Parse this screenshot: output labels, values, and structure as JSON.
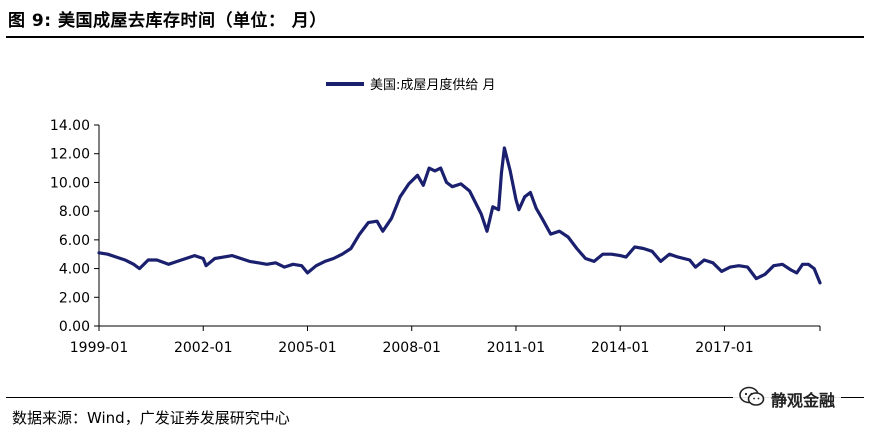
{
  "figure": {
    "title": "图 9:  美国成屋去库存时间（单位：  月）",
    "source": "数据来源：Wind，广发证券发展研究中心",
    "watermark": "静观金融"
  },
  "colors": {
    "series": "#1a1f6e",
    "axis": "#000000"
  },
  "chart_data": {
    "type": "line",
    "title": "",
    "xlabel": "",
    "ylabel": "",
    "ylim": [
      0,
      14
    ],
    "yticks": [
      "0.00",
      "2.00",
      "4.00",
      "6.00",
      "8.00",
      "10.00",
      "12.00",
      "14.00"
    ],
    "xticks": [
      "1999-01",
      "2002-01",
      "2005-01",
      "2008-01",
      "2011-01",
      "2014-01",
      "2017-01"
    ],
    "xrange": [
      "1999-01",
      "2019-10"
    ],
    "legend_position": "top-center",
    "grid": false,
    "series": [
      {
        "name": "美国:成屋月度供给 月",
        "points": [
          [
            "1999-01",
            5.1
          ],
          [
            "1999-04",
            5.0
          ],
          [
            "1999-07",
            4.8
          ],
          [
            "1999-10",
            4.6
          ],
          [
            "2000-01",
            4.3
          ],
          [
            "2000-03",
            4.0
          ],
          [
            "2000-06",
            4.6
          ],
          [
            "2000-09",
            4.6
          ],
          [
            "2001-01",
            4.3
          ],
          [
            "2001-04",
            4.5
          ],
          [
            "2001-07",
            4.7
          ],
          [
            "2001-10",
            4.9
          ],
          [
            "2002-01",
            4.7
          ],
          [
            "2002-02",
            4.2
          ],
          [
            "2002-05",
            4.7
          ],
          [
            "2002-08",
            4.8
          ],
          [
            "2002-11",
            4.9
          ],
          [
            "2003-02",
            4.7
          ],
          [
            "2003-05",
            4.5
          ],
          [
            "2003-08",
            4.4
          ],
          [
            "2003-11",
            4.3
          ],
          [
            "2004-02",
            4.4
          ],
          [
            "2004-05",
            4.1
          ],
          [
            "2004-08",
            4.3
          ],
          [
            "2004-11",
            4.2
          ],
          [
            "2005-01",
            3.7
          ],
          [
            "2005-04",
            4.2
          ],
          [
            "2005-07",
            4.5
          ],
          [
            "2005-10",
            4.7
          ],
          [
            "2006-01",
            5.0
          ],
          [
            "2006-04",
            5.4
          ],
          [
            "2006-07",
            6.4
          ],
          [
            "2006-10",
            7.2
          ],
          [
            "2007-01",
            7.3
          ],
          [
            "2007-03",
            6.6
          ],
          [
            "2007-06",
            7.5
          ],
          [
            "2007-09",
            9.0
          ],
          [
            "2007-12",
            9.9
          ],
          [
            "2008-03",
            10.5
          ],
          [
            "2008-05",
            9.8
          ],
          [
            "2008-07",
            11.0
          ],
          [
            "2008-09",
            10.8
          ],
          [
            "2008-11",
            11.0
          ],
          [
            "2009-01",
            10.0
          ],
          [
            "2009-03",
            9.7
          ],
          [
            "2009-06",
            9.9
          ],
          [
            "2009-09",
            9.4
          ],
          [
            "2009-11",
            8.6
          ],
          [
            "2010-01",
            7.8
          ],
          [
            "2010-03",
            6.6
          ],
          [
            "2010-05",
            8.3
          ],
          [
            "2010-07",
            8.1
          ],
          [
            "2010-08",
            10.7
          ],
          [
            "2010-09",
            12.4
          ],
          [
            "2010-11",
            10.8
          ],
          [
            "2011-01",
            8.8
          ],
          [
            "2011-02",
            8.1
          ],
          [
            "2011-04",
            9.0
          ],
          [
            "2011-06",
            9.3
          ],
          [
            "2011-08",
            8.2
          ],
          [
            "2011-10",
            7.5
          ],
          [
            "2012-01",
            6.4
          ],
          [
            "2012-04",
            6.6
          ],
          [
            "2012-07",
            6.2
          ],
          [
            "2012-10",
            5.4
          ],
          [
            "2013-01",
            4.7
          ],
          [
            "2013-04",
            4.5
          ],
          [
            "2013-07",
            5.0
          ],
          [
            "2013-10",
            5.0
          ],
          [
            "2014-01",
            4.9
          ],
          [
            "2014-03",
            4.8
          ],
          [
            "2014-06",
            5.5
          ],
          [
            "2014-09",
            5.4
          ],
          [
            "2014-12",
            5.2
          ],
          [
            "2015-03",
            4.5
          ],
          [
            "2015-06",
            5.0
          ],
          [
            "2015-09",
            4.8
          ],
          [
            "2016-01",
            4.6
          ],
          [
            "2016-03",
            4.1
          ],
          [
            "2016-06",
            4.6
          ],
          [
            "2016-09",
            4.4
          ],
          [
            "2016-12",
            3.8
          ],
          [
            "2017-03",
            4.1
          ],
          [
            "2017-06",
            4.2
          ],
          [
            "2017-09",
            4.1
          ],
          [
            "2017-12",
            3.3
          ],
          [
            "2018-03",
            3.6
          ],
          [
            "2018-06",
            4.2
          ],
          [
            "2018-09",
            4.3
          ],
          [
            "2018-12",
            3.9
          ],
          [
            "2019-02",
            3.7
          ],
          [
            "2019-04",
            4.3
          ],
          [
            "2019-06",
            4.3
          ],
          [
            "2019-08",
            4.0
          ],
          [
            "2019-10",
            3.0
          ]
        ]
      }
    ]
  }
}
